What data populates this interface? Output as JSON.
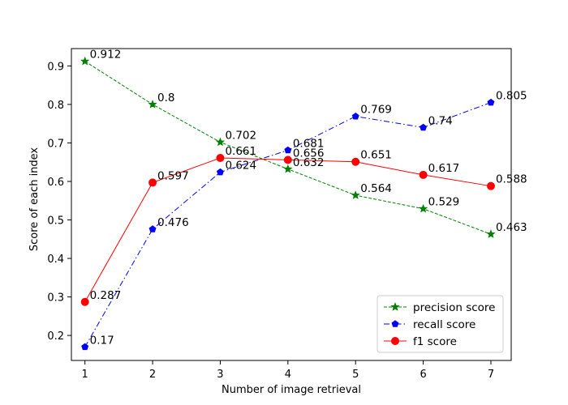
{
  "chart_data": {
    "type": "line",
    "title": "",
    "xlabel": "Number of image retrieval",
    "ylabel": "Score of each index",
    "x": [
      1,
      2,
      3,
      4,
      5,
      6,
      7
    ],
    "xlim": [
      0.8,
      7.3
    ],
    "ylim": [
      0.135,
      0.945
    ],
    "xticks": [
      1,
      2,
      3,
      4,
      5,
      6,
      7
    ],
    "yticks": [
      0.2,
      0.3,
      0.4,
      0.5,
      0.6,
      0.7,
      0.8,
      0.9
    ],
    "grid": false,
    "legend_position": "lower-right",
    "series": [
      {
        "name": "precision score",
        "values": [
          0.912,
          0.8,
          0.702,
          0.632,
          0.564,
          0.529,
          0.463
        ],
        "labels": [
          "0.912",
          "0.8",
          "0.702",
          "0.632",
          "0.564",
          "0.529",
          "0.463"
        ],
        "color": "#008000",
        "marker": "star",
        "linestyle": "dashed"
      },
      {
        "name": "recall score",
        "values": [
          0.17,
          0.476,
          0.624,
          0.681,
          0.769,
          0.74,
          0.805
        ],
        "labels": [
          "0.17",
          "0.476",
          "0.624",
          "0.681",
          "0.769",
          "0.74",
          "0.805"
        ],
        "color": "#0000ff",
        "marker": "pentagon",
        "linestyle": "dashdot"
      },
      {
        "name": "f1 score",
        "values": [
          0.287,
          0.597,
          0.661,
          0.656,
          0.651,
          0.617,
          0.588
        ],
        "labels": [
          "0.287",
          "0.597",
          "0.661",
          "0.656",
          "0.651",
          "0.617",
          "0.588"
        ],
        "color": "#ff0000",
        "marker": "circle",
        "linestyle": "solid"
      }
    ]
  }
}
